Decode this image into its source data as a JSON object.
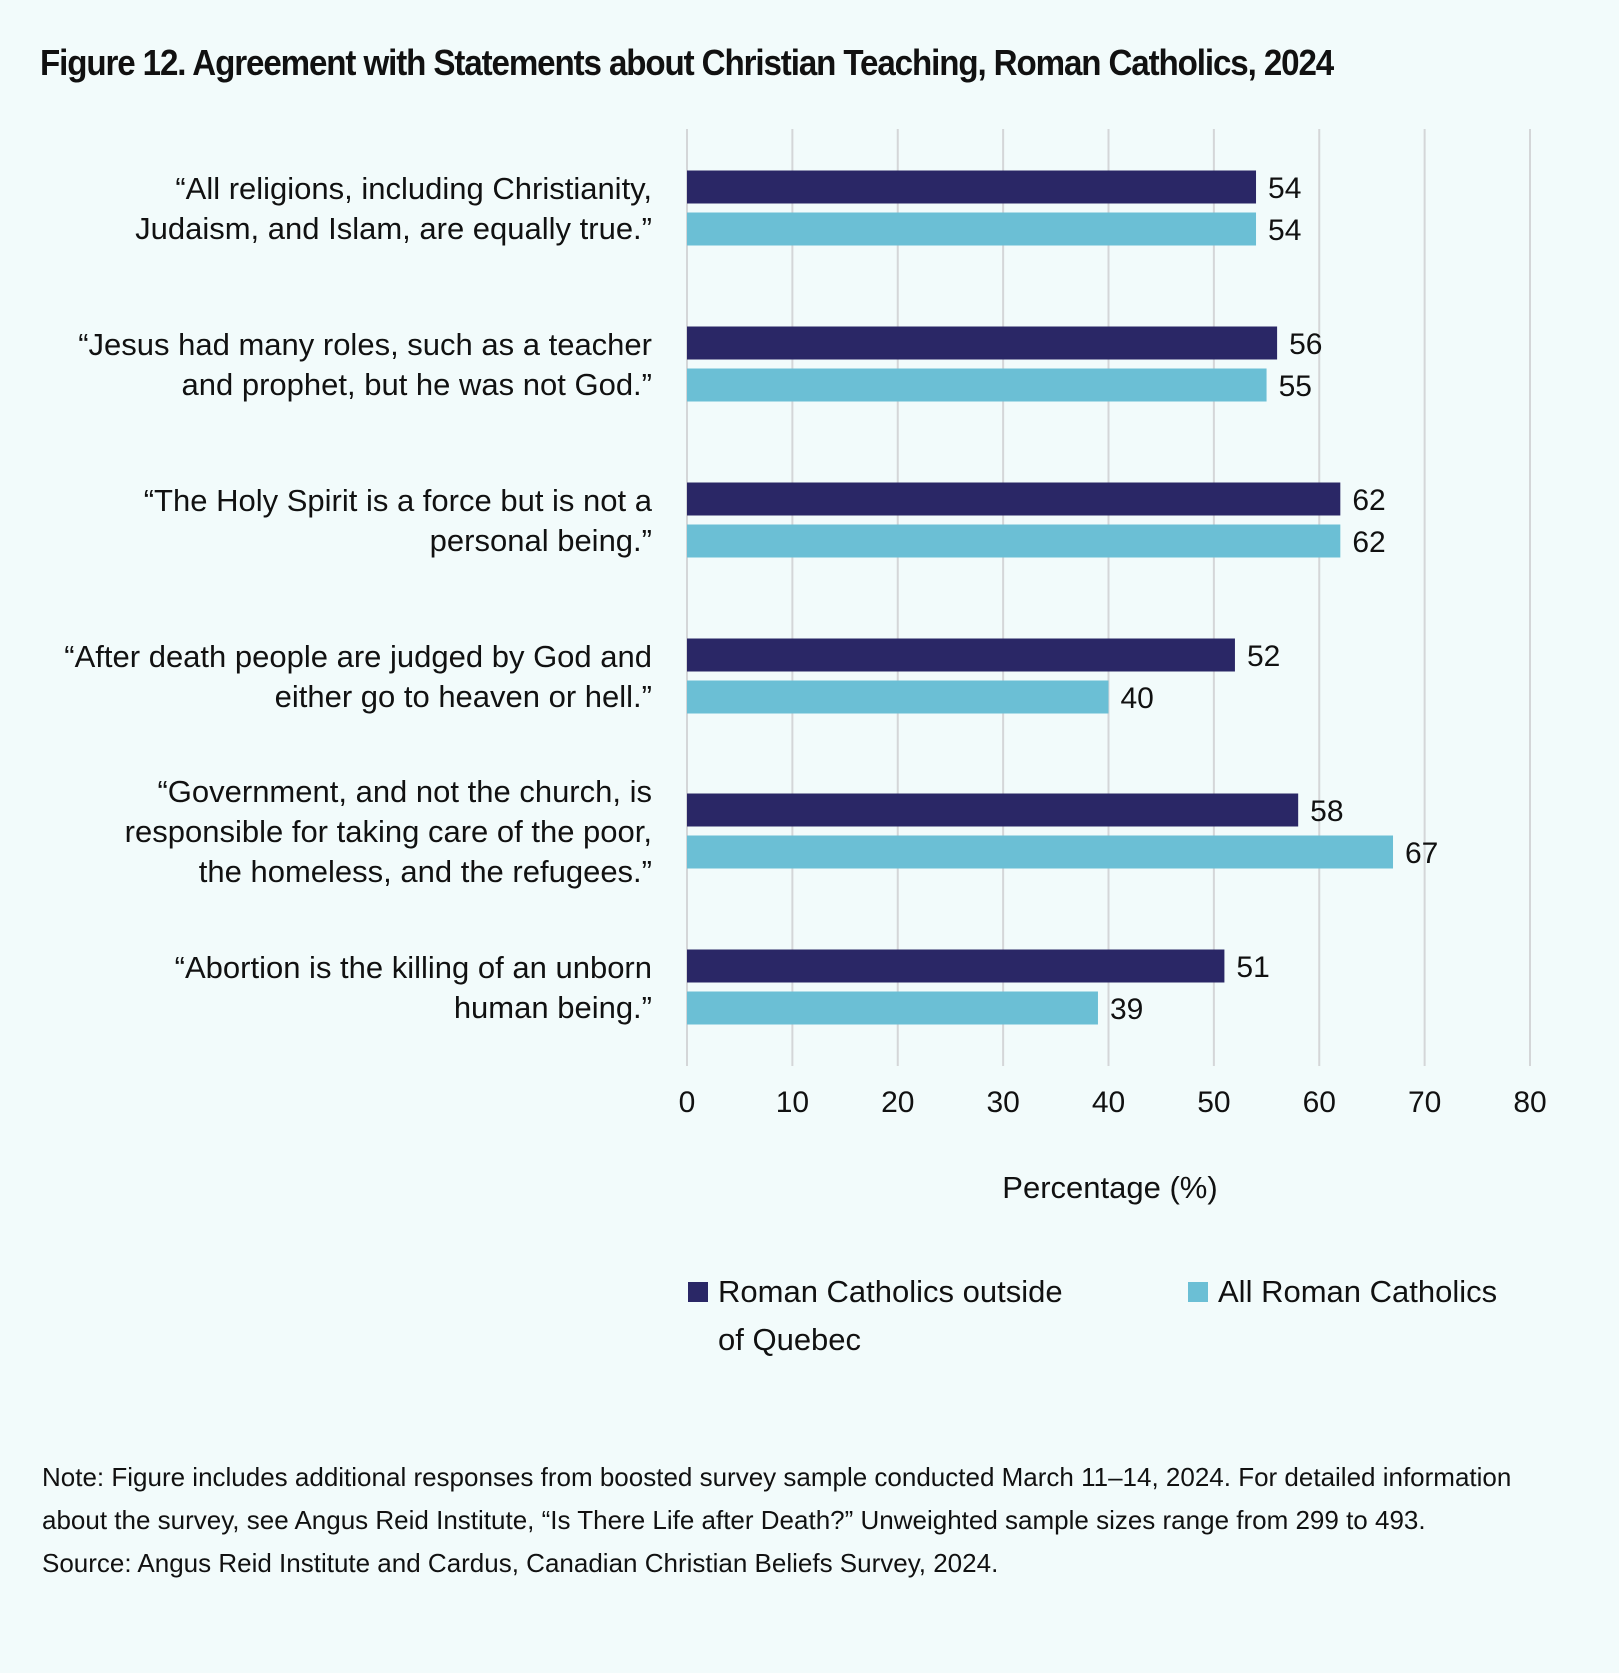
{
  "title": "Figure 12. Agreement with Statements about Christian Teaching, Roman Catholics, 2024",
  "colors": {
    "background": "#f2fbfb",
    "series_outside_quebec": "#2a2766",
    "series_all": "#6bbfd5",
    "gridline": "#d4d6d8"
  },
  "chart_data": {
    "type": "bar",
    "orientation": "horizontal",
    "title": "Figure 12. Agreement with Statements about Christian Teaching, Roman Catholics, 2024",
    "categories": [
      [
        "“All religions, including Christianity,",
        "Judaism, and Islam, are equally true.”"
      ],
      [
        "“Jesus had many roles, such as a teacher",
        "and prophet, but he was not God.”"
      ],
      [
        "“The Holy Spirit is a force but is not a",
        "personal being.”"
      ],
      [
        "“After death people are judged by God and",
        "either go to heaven or hell.”"
      ],
      [
        "“Government, and not the church, is",
        "responsible for taking care of the poor,",
        "the homeless, and the refugees.”"
      ],
      [
        "“Abortion is the killing of an unborn",
        "human being.”"
      ]
    ],
    "series": [
      {
        "name": "Roman Catholics outside of Quebec",
        "values": [
          54,
          56,
          62,
          52,
          58,
          51
        ]
      },
      {
        "name": "All Roman Catholics",
        "values": [
          54,
          55,
          62,
          40,
          67,
          39
        ]
      }
    ],
    "xlabel": "Percentage (%)",
    "ylabel": "",
    "xlim": [
      0,
      80
    ],
    "xticks": [
      "0",
      "10",
      "20",
      "30",
      "40",
      "50",
      "60",
      "70",
      "80"
    ],
    "grid": true,
    "legend_position": "bottom"
  },
  "legend": {
    "items": [
      {
        "label_line1": "Roman Catholics outside",
        "label_line2": "of Quebec"
      },
      {
        "label_line1": "All Roman Catholics"
      }
    ]
  },
  "notes": {
    "note": "Note: Figure includes additional responses from boosted survey sample conducted March 11–14, 2024. For detailed information about the survey, see Angus Reid Institute, “Is There Life after Death?” Unweighted sample sizes range from 299 to 493.",
    "source": "Source: Angus Reid Institute and Cardus, Canadian Christian Beliefs Survey, 2024."
  }
}
